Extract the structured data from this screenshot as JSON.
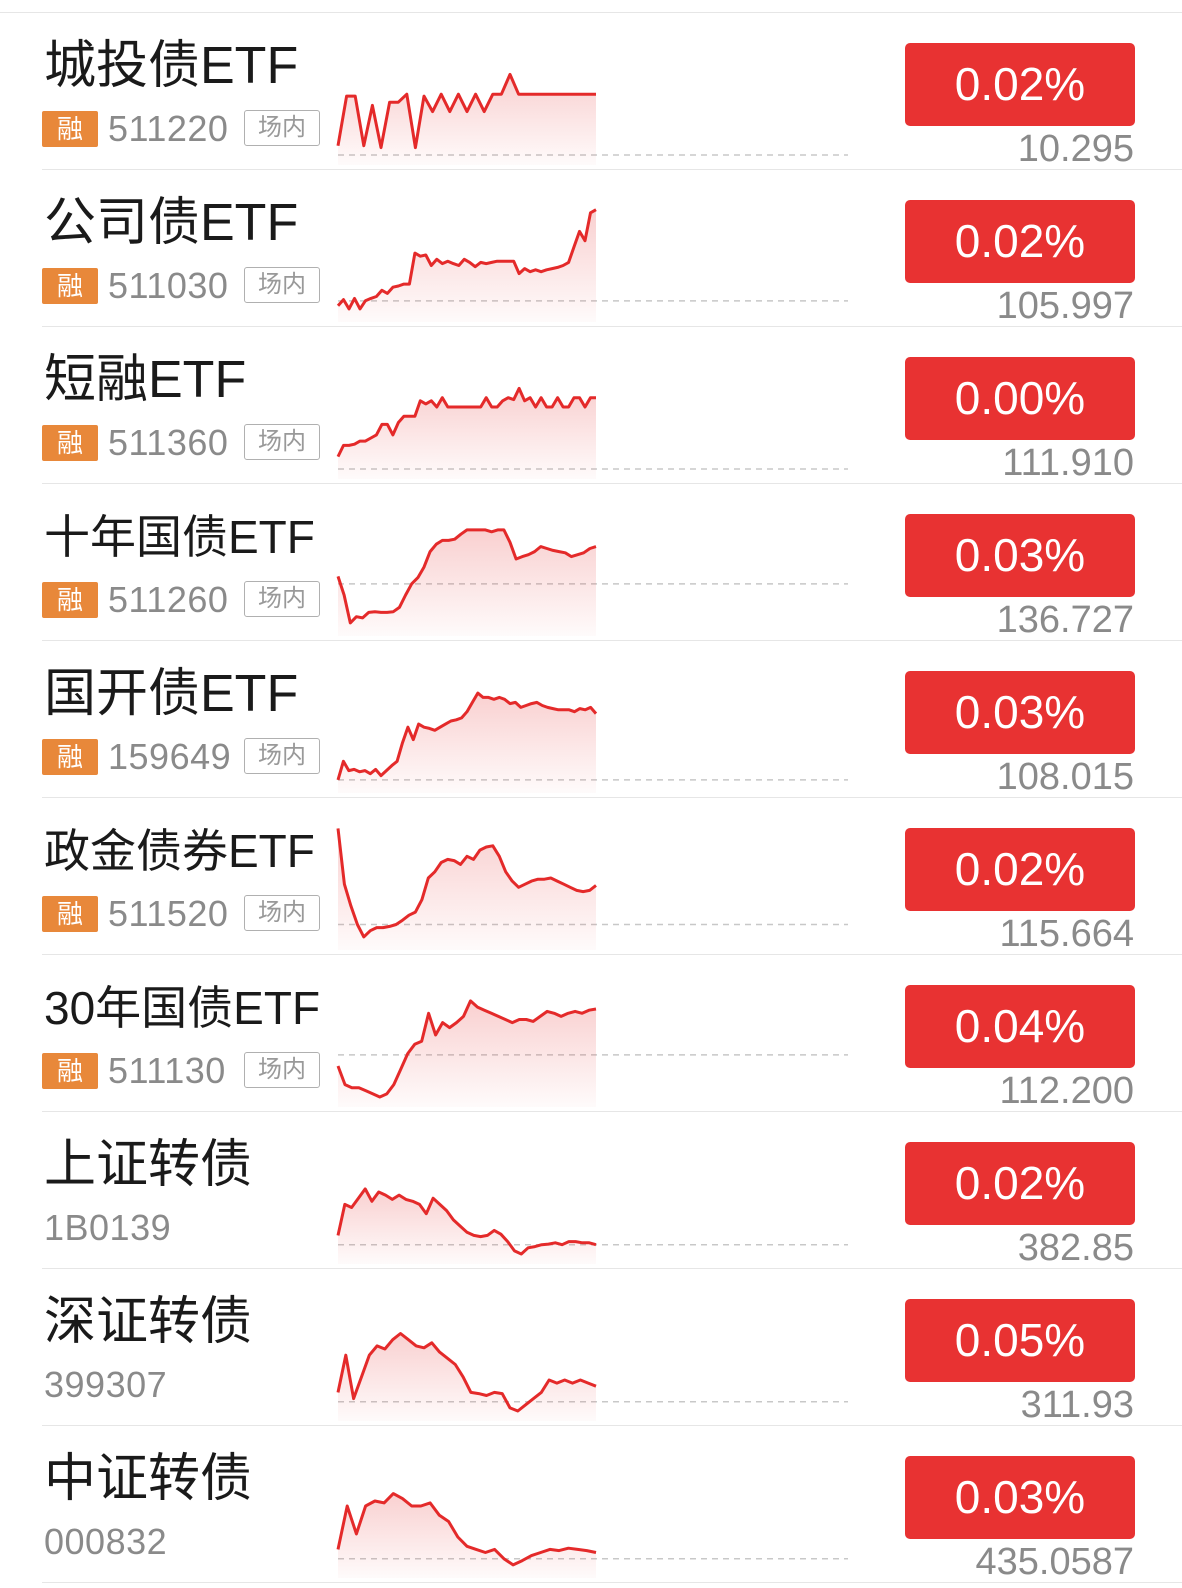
{
  "colors": {
    "up_red": "#e83232",
    "line_red": "#e42a2a",
    "margin_badge": "#e8883a",
    "secondary_text": "#8a8a8a"
  },
  "rows": [
    {
      "name": "城投债ETF",
      "badge": "融",
      "code": "511220",
      "tag": "场内",
      "change": "0.02%",
      "price": "10.295",
      "spark": [
        0.15,
        0.95,
        0.95,
        0.15,
        0.8,
        0.12,
        0.85,
        0.85,
        0.98,
        0.12,
        0.95,
        0.7,
        0.98,
        0.7,
        0.98,
        0.7,
        0.98,
        0.7,
        0.98,
        0.98,
        1.3,
        0.98,
        0.98,
        0.98,
        0.98,
        0.98,
        0.98,
        0.98,
        0.98,
        0.98,
        0.98
      ],
      "spark_len": 31,
      "baseline": 0.0
    },
    {
      "name": "公司债ETF",
      "badge": "融",
      "code": "511030",
      "tag": "场内",
      "change": "0.02%",
      "price": "105.997",
      "spark": [
        0.1,
        0.2,
        0.05,
        0.22,
        0.05,
        0.18,
        0.22,
        0.25,
        0.35,
        0.3,
        0.4,
        0.42,
        0.45,
        0.45,
        0.95,
        0.9,
        0.92,
        0.75,
        0.85,
        0.78,
        0.82,
        0.78,
        0.75,
        0.85,
        0.8,
        0.73,
        0.8,
        0.78,
        0.8,
        0.82,
        0.82,
        0.82,
        0.82,
        0.62,
        0.7,
        0.65,
        0.68,
        0.65,
        0.68,
        0.7,
        0.72,
        0.75,
        0.8,
        1.05,
        1.3,
        1.15,
        1.6,
        1.65
      ],
      "spark_len": 48,
      "baseline": 0.18
    },
    {
      "name": "短融ETF",
      "badge": "融",
      "code": "511360",
      "tag": "场内",
      "change": "0.00%",
      "price": "111.910",
      "spark": [
        0.2,
        0.38,
        0.38,
        0.4,
        0.45,
        0.45,
        0.5,
        0.55,
        0.72,
        0.72,
        0.55,
        0.75,
        0.85,
        0.85,
        0.85,
        1.1,
        1.05,
        1.1,
        1.0,
        1.15,
        1.0,
        1.0,
        1.0,
        1.0,
        1.0,
        1.0,
        1.0,
        1.15,
        1.0,
        1.0,
        1.1,
        1.15,
        1.12,
        1.3,
        1.1,
        1.15,
        1.0,
        1.15,
        1.0,
        1.0,
        1.15,
        1.0,
        1.0,
        1.15,
        1.15,
        1.0,
        1.15,
        1.15
      ],
      "spark_len": 48,
      "baseline": 0.0
    },
    {
      "name": "十年国债ETF",
      "badge": "融",
      "code": "511260",
      "tag": "场内",
      "change": "0.03%",
      "price": "136.727",
      "spark": [
        0.8,
        0.5,
        0.05,
        0.15,
        0.13,
        0.22,
        0.23,
        0.22,
        0.22,
        0.23,
        0.3,
        0.5,
        0.68,
        0.78,
        0.95,
        1.2,
        1.32,
        1.38,
        1.38,
        1.4,
        1.48,
        1.55,
        1.55,
        1.55,
        1.55,
        1.52,
        1.55,
        1.55,
        1.35,
        1.08,
        1.12,
        1.15,
        1.2,
        1.28,
        1.25,
        1.22,
        1.2,
        1.18,
        1.12,
        1.15,
        1.18,
        1.25,
        1.28
      ],
      "spark_len": 43,
      "baseline": 0.68
    },
    {
      "name": "国开债ETF",
      "badge": "融",
      "code": "159649",
      "tag": "场内",
      "change": "0.03%",
      "price": "108.015",
      "spark": [
        0.05,
        0.35,
        0.2,
        0.22,
        0.18,
        0.2,
        0.15,
        0.22,
        0.12,
        0.2,
        0.28,
        0.35,
        0.65,
        0.9,
        0.7,
        0.95,
        0.9,
        0.88,
        0.85,
        0.9,
        0.95,
        1.0,
        1.02,
        1.05,
        1.15,
        1.3,
        1.45,
        1.38,
        1.38,
        1.35,
        1.38,
        1.35,
        1.28,
        1.3,
        1.22,
        1.25,
        1.28,
        1.3,
        1.25,
        1.22,
        1.2,
        1.18,
        1.18,
        1.18,
        1.15,
        1.2,
        1.18,
        1.22,
        1.12
      ],
      "spark_len": 49,
      "baseline": 0.05
    },
    {
      "name": "政金债券ETF",
      "badge": "融",
      "code": "511520",
      "tag": "场内",
      "change": "0.02%",
      "price": "115.664",
      "spark": [
        1.8,
        0.9,
        0.55,
        0.25,
        0.05,
        0.15,
        0.2,
        0.2,
        0.22,
        0.25,
        0.32,
        0.4,
        0.45,
        0.65,
        1.0,
        1.1,
        1.25,
        1.3,
        1.28,
        1.22,
        1.35,
        1.3,
        1.45,
        1.5,
        1.52,
        1.35,
        1.1,
        0.95,
        0.85,
        0.9,
        0.95,
        0.98,
        0.98,
        1.0,
        0.95,
        0.9,
        0.85,
        0.8,
        0.78,
        0.8,
        0.88
      ],
      "spark_len": 41,
      "baseline": 0.25
    },
    {
      "name": "30年国债ETF",
      "badge": "融",
      "code": "511130",
      "tag": "场内",
      "change": "0.04%",
      "price": "112.200",
      "spark": [
        0.5,
        0.2,
        0.15,
        0.15,
        0.1,
        0.05,
        0.0,
        0.05,
        0.2,
        0.45,
        0.7,
        0.85,
        0.9,
        1.35,
        1.0,
        1.2,
        1.12,
        1.2,
        1.3,
        1.55,
        1.45,
        1.4,
        1.35,
        1.3,
        1.25,
        1.2,
        1.25,
        1.25,
        1.22,
        1.3,
        1.38,
        1.35,
        1.3,
        1.35,
        1.38,
        1.35,
        1.4,
        1.42
      ],
      "spark_len": 38,
      "baseline": 0.68
    },
    {
      "name": "上证转债",
      "badge": "",
      "code": "1B0139",
      "tag": "",
      "change": "0.02%",
      "price": "382.85",
      "spark": [
        0.3,
        0.8,
        0.75,
        0.9,
        1.05,
        0.85,
        1.0,
        0.95,
        0.88,
        0.95,
        0.88,
        0.85,
        0.8,
        0.65,
        0.9,
        0.8,
        0.7,
        0.55,
        0.45,
        0.35,
        0.3,
        0.28,
        0.3,
        0.38,
        0.32,
        0.2,
        0.05,
        0.0,
        0.1,
        0.12,
        0.15,
        0.16,
        0.18,
        0.15,
        0.2,
        0.2,
        0.18,
        0.18,
        0.15
      ],
      "spark_len": 39,
      "baseline": 0.15
    },
    {
      "name": "深证转债",
      "badge": "",
      "code": "399307",
      "tag": "",
      "change": "0.05%",
      "price": "311.93",
      "spark": [
        0.3,
        0.9,
        0.2,
        0.55,
        0.9,
        1.05,
        1.0,
        1.15,
        1.25,
        1.15,
        1.05,
        1.02,
        1.1,
        0.95,
        0.85,
        0.75,
        0.55,
        0.3,
        0.28,
        0.25,
        0.3,
        0.28,
        0.05,
        0.0,
        0.1,
        0.2,
        0.3,
        0.5,
        0.45,
        0.5,
        0.45,
        0.5,
        0.45,
        0.4
      ],
      "spark_len": 34,
      "baseline": 0.15
    },
    {
      "name": "中证转债",
      "badge": "",
      "code": "000832",
      "tag": "",
      "change": "0.03%",
      "price": "435.0587",
      "spark": [
        0.3,
        1.0,
        0.55,
        1.0,
        1.08,
        1.05,
        1.2,
        1.12,
        1.0,
        1.0,
        1.05,
        0.85,
        0.75,
        0.5,
        0.35,
        0.3,
        0.25,
        0.3,
        0.15,
        0.05,
        0.12,
        0.2,
        0.25,
        0.3,
        0.28,
        0.32,
        0.3,
        0.28,
        0.25
      ],
      "spark_len": 29,
      "baseline": 0.15
    }
  ]
}
